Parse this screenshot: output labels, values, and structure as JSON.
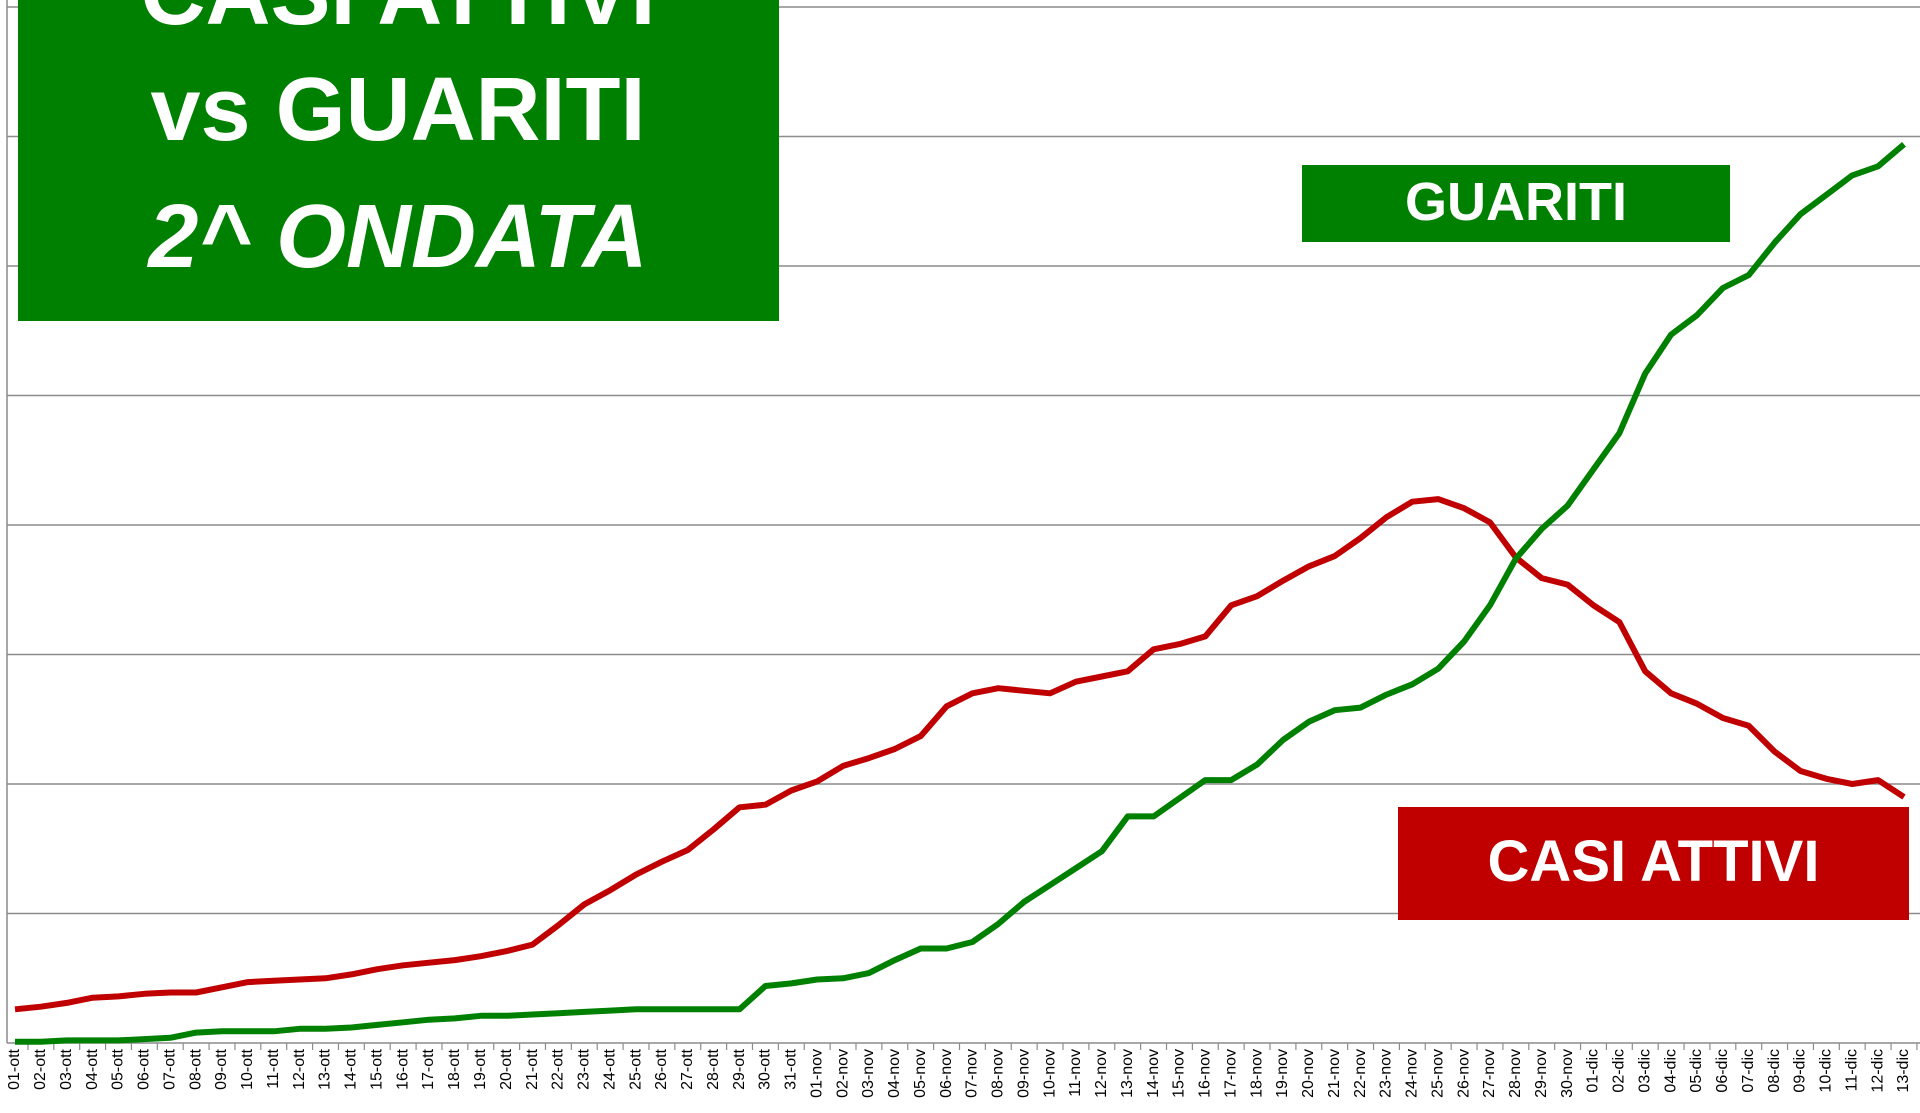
{
  "chart_data": {
    "type": "line",
    "title": [
      "CASI ATTIVI",
      "vs GUARITI"
    ],
    "subtitle": "2^ ONDATA",
    "categories": [
      "01-ott",
      "02-ott",
      "03-ott",
      "04-ott",
      "05-ott",
      "06-ott",
      "07-ott",
      "08-ott",
      "09-ott",
      "10-ott",
      "11-ott",
      "12-ott",
      "13-ott",
      "14-ott",
      "15-ott",
      "16-ott",
      "17-ott",
      "18-ott",
      "19-ott",
      "20-ott",
      "21-ott",
      "22-ott",
      "23-ott",
      "24-ott",
      "25-ott",
      "26-ott",
      "27-ott",
      "28-ott",
      "29-ott",
      "30-ott",
      "31-ott",
      "01-nov",
      "02-nov",
      "03-nov",
      "04-nov",
      "05-nov",
      "06-nov",
      "07-nov",
      "08-nov",
      "09-nov",
      "10-nov",
      "11-nov",
      "12-nov",
      "13-nov",
      "14-nov",
      "15-nov",
      "16-nov",
      "17-nov",
      "18-nov",
      "19-nov",
      "20-nov",
      "21-nov",
      "22-nov",
      "23-nov",
      "24-nov",
      "25-nov",
      "26-nov",
      "27-nov",
      "28-nov",
      "29-nov",
      "30-nov",
      "01-dic",
      "02-dic",
      "03-dic",
      "04-dic",
      "05-dic",
      "06-dic",
      "07-dic",
      "08-dic",
      "09-dic",
      "10-dic",
      "11-dic",
      "12-dic",
      "13-dic"
    ],
    "series": [
      {
        "name": "CASI ATTIVI",
        "color": "#c00000",
        "values": [
          0.26,
          0.28,
          0.31,
          0.35,
          0.36,
          0.38,
          0.39,
          0.39,
          0.43,
          0.47,
          0.48,
          0.49,
          0.5,
          0.53,
          0.57,
          0.6,
          0.62,
          0.64,
          0.67,
          0.71,
          0.76,
          0.91,
          1.07,
          1.18,
          1.3,
          1.4,
          1.49,
          1.65,
          1.82,
          1.84,
          1.95,
          2.02,
          2.14,
          2.2,
          2.27,
          2.37,
          2.6,
          2.7,
          2.74,
          2.72,
          2.7,
          2.79,
          2.83,
          2.87,
          3.04,
          3.08,
          3.14,
          3.38,
          3.45,
          3.57,
          3.68,
          3.76,
          3.9,
          4.06,
          4.18,
          4.2,
          4.13,
          4.02,
          3.75,
          3.59,
          3.54,
          3.38,
          3.25,
          2.87,
          2.7,
          2.62,
          2.51,
          2.45,
          2.25,
          2.1,
          2.04,
          2.0,
          2.03,
          1.9
        ]
      },
      {
        "name": "GUARITI",
        "color": "#008000",
        "values": [
          0.01,
          0.01,
          0.02,
          0.02,
          0.02,
          0.03,
          0.04,
          0.08,
          0.09,
          0.09,
          0.09,
          0.11,
          0.11,
          0.12,
          0.14,
          0.16,
          0.18,
          0.19,
          0.21,
          0.21,
          0.22,
          0.23,
          0.24,
          0.25,
          0.26,
          0.26,
          0.26,
          0.26,
          0.26,
          0.44,
          0.46,
          0.49,
          0.5,
          0.54,
          0.64,
          0.73,
          0.73,
          0.78,
          0.92,
          1.09,
          1.22,
          1.35,
          1.48,
          1.75,
          1.75,
          1.89,
          2.03,
          2.03,
          2.15,
          2.34,
          2.48,
          2.57,
          2.59,
          2.69,
          2.77,
          2.89,
          3.1,
          3.38,
          3.74,
          3.97,
          4.15,
          4.43,
          4.71,
          5.17,
          5.47,
          5.62,
          5.83,
          5.93,
          6.18,
          6.4,
          6.55,
          6.7,
          6.77,
          6.94
        ]
      }
    ],
    "ylim": [
      0,
      8
    ],
    "yticks": [
      0,
      1,
      2,
      3,
      4,
      5,
      6,
      7,
      8
    ],
    "grid": true
  }
}
